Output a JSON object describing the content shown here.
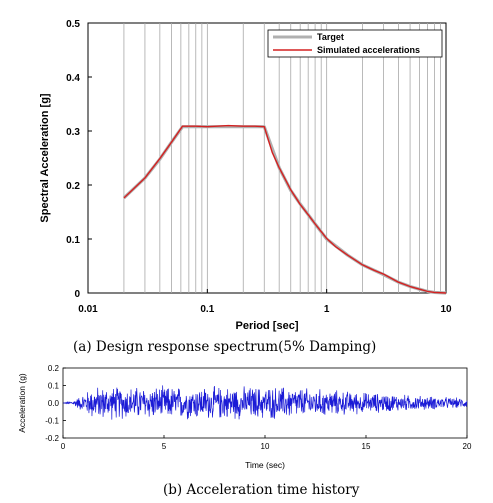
{
  "chart_data": [
    {
      "type": "line",
      "caption": "(a) Design response spectrum(5% Damping)",
      "xlabel": "Period [sec]",
      "ylabel": "Spectral Acceleration [g]",
      "xscale": "log",
      "xlim": [
        0.01,
        10
      ],
      "ylim": [
        0,
        0.5
      ],
      "xticks": [
        0.01,
        0.1,
        1,
        10
      ],
      "xtick_labels": [
        "0.01",
        "0.1",
        "1",
        "10"
      ],
      "yticks": [
        0,
        0.1,
        0.2,
        0.3,
        0.4,
        0.5
      ],
      "ytick_labels": [
        "0",
        "0.1",
        "0.2",
        "0.3",
        "0.4",
        "0.5"
      ],
      "grid": "vertical minor",
      "legend_position": "top-right",
      "colors": {
        "target": "#b0b0b0",
        "simulated": "#d42020"
      },
      "series": [
        {
          "name": "Target",
          "x": [
            0.02,
            0.03,
            0.04,
            0.05,
            0.062,
            0.1,
            0.2,
            0.3,
            0.4,
            0.5,
            0.6,
            0.8,
            1.0,
            1.5,
            2.0,
            3.0,
            4.0,
            5.0,
            6.0,
            7.0,
            8.0,
            10.0
          ],
          "y": [
            0.176,
            0.213,
            0.248,
            0.279,
            0.308,
            0.308,
            0.308,
            0.308,
            0.232,
            0.19,
            0.165,
            0.128,
            0.1,
            0.07,
            0.052,
            0.034,
            0.02,
            0.012,
            0.007,
            0.003,
            0.001,
            0.0
          ]
        },
        {
          "name": "Simulated accelerations",
          "x": [
            0.02,
            0.03,
            0.04,
            0.05,
            0.062,
            0.08,
            0.1,
            0.15,
            0.2,
            0.25,
            0.3,
            0.35,
            0.4,
            0.5,
            0.6,
            0.7,
            0.8,
            1.0,
            1.2,
            1.5,
            2.0,
            2.5,
            3.0,
            4.0,
            5.0,
            6.0,
            7.0,
            8.0,
            10.0
          ],
          "y": [
            0.176,
            0.213,
            0.249,
            0.279,
            0.309,
            0.309,
            0.308,
            0.31,
            0.309,
            0.309,
            0.308,
            0.26,
            0.232,
            0.191,
            0.164,
            0.145,
            0.128,
            0.101,
            0.085,
            0.07,
            0.052,
            0.042,
            0.035,
            0.02,
            0.012,
            0.007,
            0.003,
            0.001,
            0.0
          ]
        }
      ]
    },
    {
      "type": "line",
      "caption": "(b) Acceleration time history",
      "xlabel": "Time (sec)",
      "ylabel": "Acceleration (g)",
      "xlim": [
        0,
        20
      ],
      "ylim": [
        -0.2,
        0.2
      ],
      "xticks": [
        0,
        5,
        10,
        15,
        20
      ],
      "xtick_labels": [
        "0",
        "5",
        "10",
        "15",
        "20"
      ],
      "yticks": [
        -0.2,
        -0.1,
        0.0,
        0.1,
        0.2
      ],
      "ytick_labels": [
        "-0.2",
        "-0.1",
        "0.0",
        "0.1",
        "0.2"
      ],
      "grid": false,
      "colors": {
        "line": "#1a1ad6"
      },
      "series": [
        {
          "duration": 20,
          "samples": 1200,
          "peak_abs": 0.11,
          "envelope_t": [
            0,
            0.5,
            1.5,
            11,
            15,
            20
          ],
          "envelope_amp": [
            0.0,
            0.01,
            0.07,
            0.07,
            0.045,
            0.02
          ]
        }
      ]
    }
  ]
}
